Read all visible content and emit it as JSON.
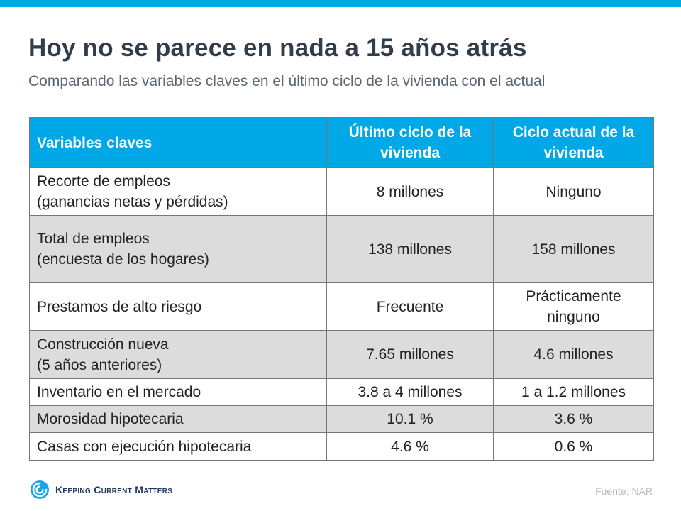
{
  "header": {
    "title": "Hoy no se parece en nada a 15 años atrás",
    "subtitle": "Comparando las variables claves en el último ciclo de la vivienda con el actual"
  },
  "table": {
    "headers": [
      "Variables claves",
      "Último ciclo de la vivienda",
      "Ciclo actual de la vivienda"
    ],
    "rows": [
      {
        "label_line1": "Recorte de empleos",
        "label_line2": "(ganancias netas y pérdidas)",
        "last": "8 millones",
        "current": "Ninguno"
      },
      {
        "label_line1": "Total de empleos",
        "label_line2": "(encuesta de los hogares)",
        "last": "138 millones",
        "current": "158 millones"
      },
      {
        "label_line1": "Prestamos de alto riesgo",
        "label_line2": "",
        "last": "Frecuente",
        "current_line1": "Prácticamente",
        "current_line2": "ninguno"
      },
      {
        "label_line1": "Construcción nueva",
        "label_line2": "(5 años anteriores)",
        "last": "7.65 millones",
        "current": "4.6 millones"
      },
      {
        "label_line1": "Inventario en el mercado",
        "label_line2": "",
        "last": "3.8 a 4 millones",
        "current": "1 a 1.2 millones"
      },
      {
        "label_line1": "Morosidad hipotecaria",
        "label_line2": "",
        "last": "10.1 %",
        "current": "3.6 %"
      },
      {
        "label_line1": "Casas con ejecución hipotecaria",
        "label_line2": "",
        "last": "4.6 %",
        "current": "0.6 %"
      }
    ]
  },
  "footer": {
    "brand": "Keeping Current Matters",
    "source_label": "Fuente:",
    "source_value": "NAR"
  },
  "colors": {
    "accent": "#00a8e8",
    "highlight": "#e6201c",
    "shade": "#dcdcdc"
  }
}
